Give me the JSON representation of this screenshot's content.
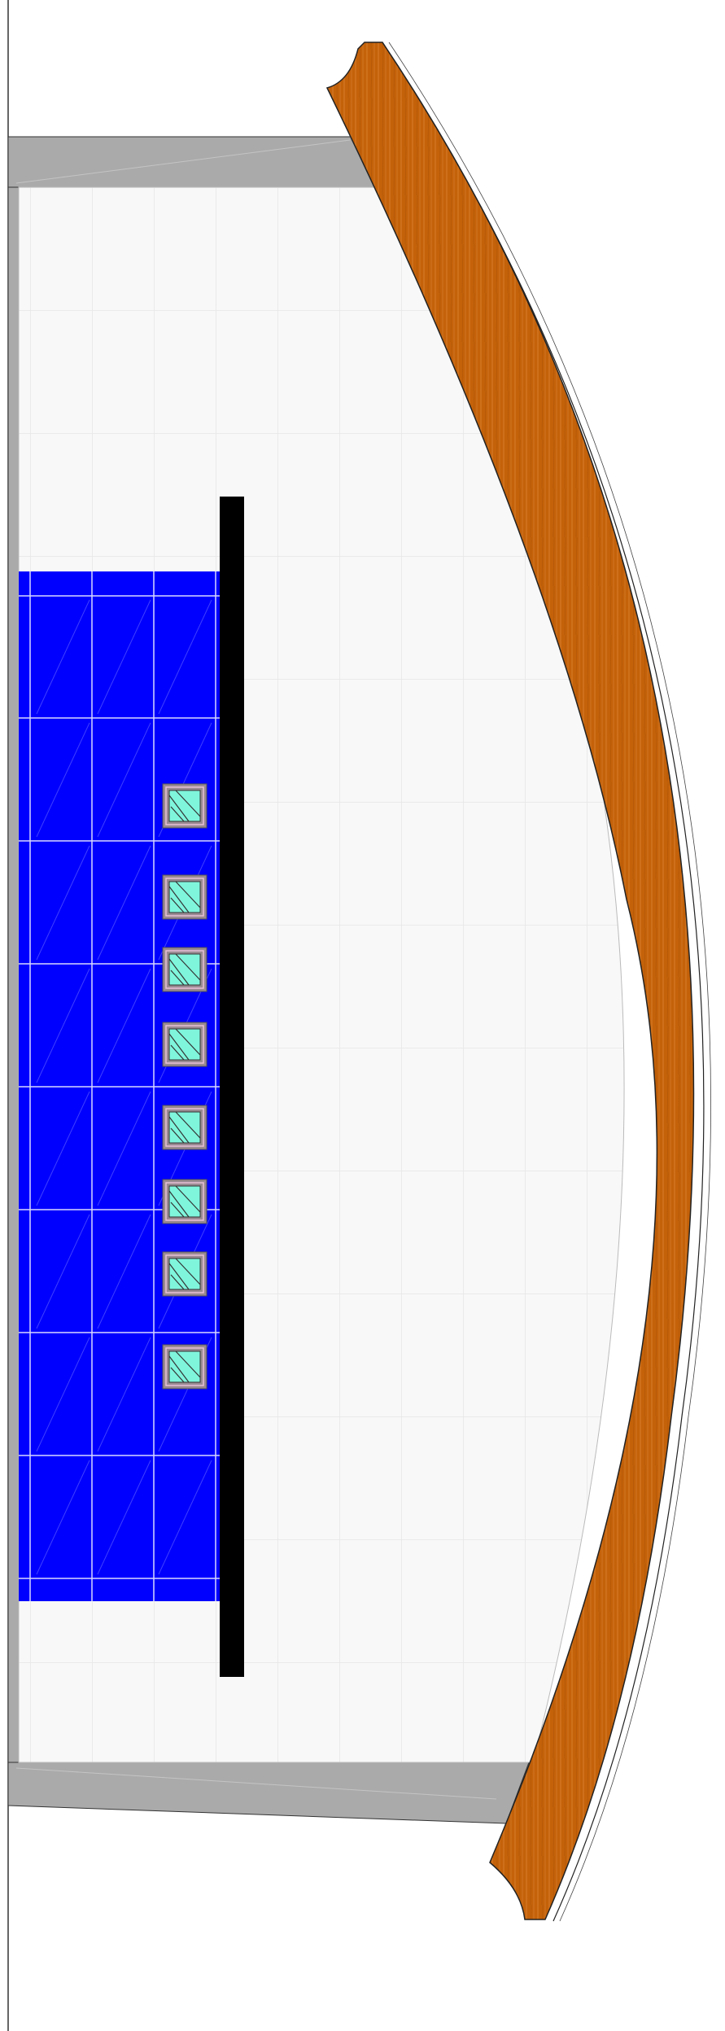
{
  "drawing": {
    "kind": "plan view of curved wooden bench in front of blue wall with square windows",
    "colors": {
      "background": "#ffffff",
      "floor": "#f8f8f8",
      "floor_grid": "#e8e8e8",
      "frame_gray": "#aaaaaa",
      "wall_blue": "#0000ff",
      "wall_grid": "#d8d8ff",
      "black_bar": "#000000",
      "wood": "#c4620a",
      "wood_grain": "#e08a3a",
      "window_frame": "#9a8a92",
      "window_glass": "#7ff5dc",
      "outline": "#222222"
    },
    "window_count": 8,
    "icons": [
      "window-icon"
    ]
  }
}
